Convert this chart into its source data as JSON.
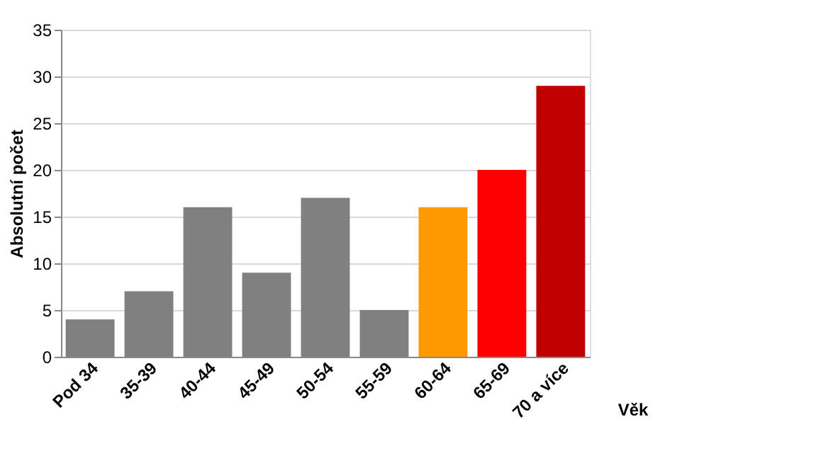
{
  "chart_data": {
    "type": "bar",
    "xlabel": "Věk",
    "ylabel": "Absolutní počet",
    "categories": [
      "Pod 34",
      "35-39",
      "40-44",
      "45-49",
      "50-54",
      "55-59",
      "60-64",
      "65-69",
      "70 a více"
    ],
    "values": [
      4,
      7,
      16,
      9,
      17,
      5,
      16,
      20,
      29
    ],
    "colors": [
      "#808080",
      "#808080",
      "#808080",
      "#808080",
      "#808080",
      "#808080",
      "#ff9900",
      "#ff0000",
      "#c00000"
    ],
    "ylim": [
      0,
      35
    ],
    "yticks": [
      0,
      5,
      10,
      15,
      20,
      25,
      30,
      35
    ],
    "grid": "y"
  }
}
